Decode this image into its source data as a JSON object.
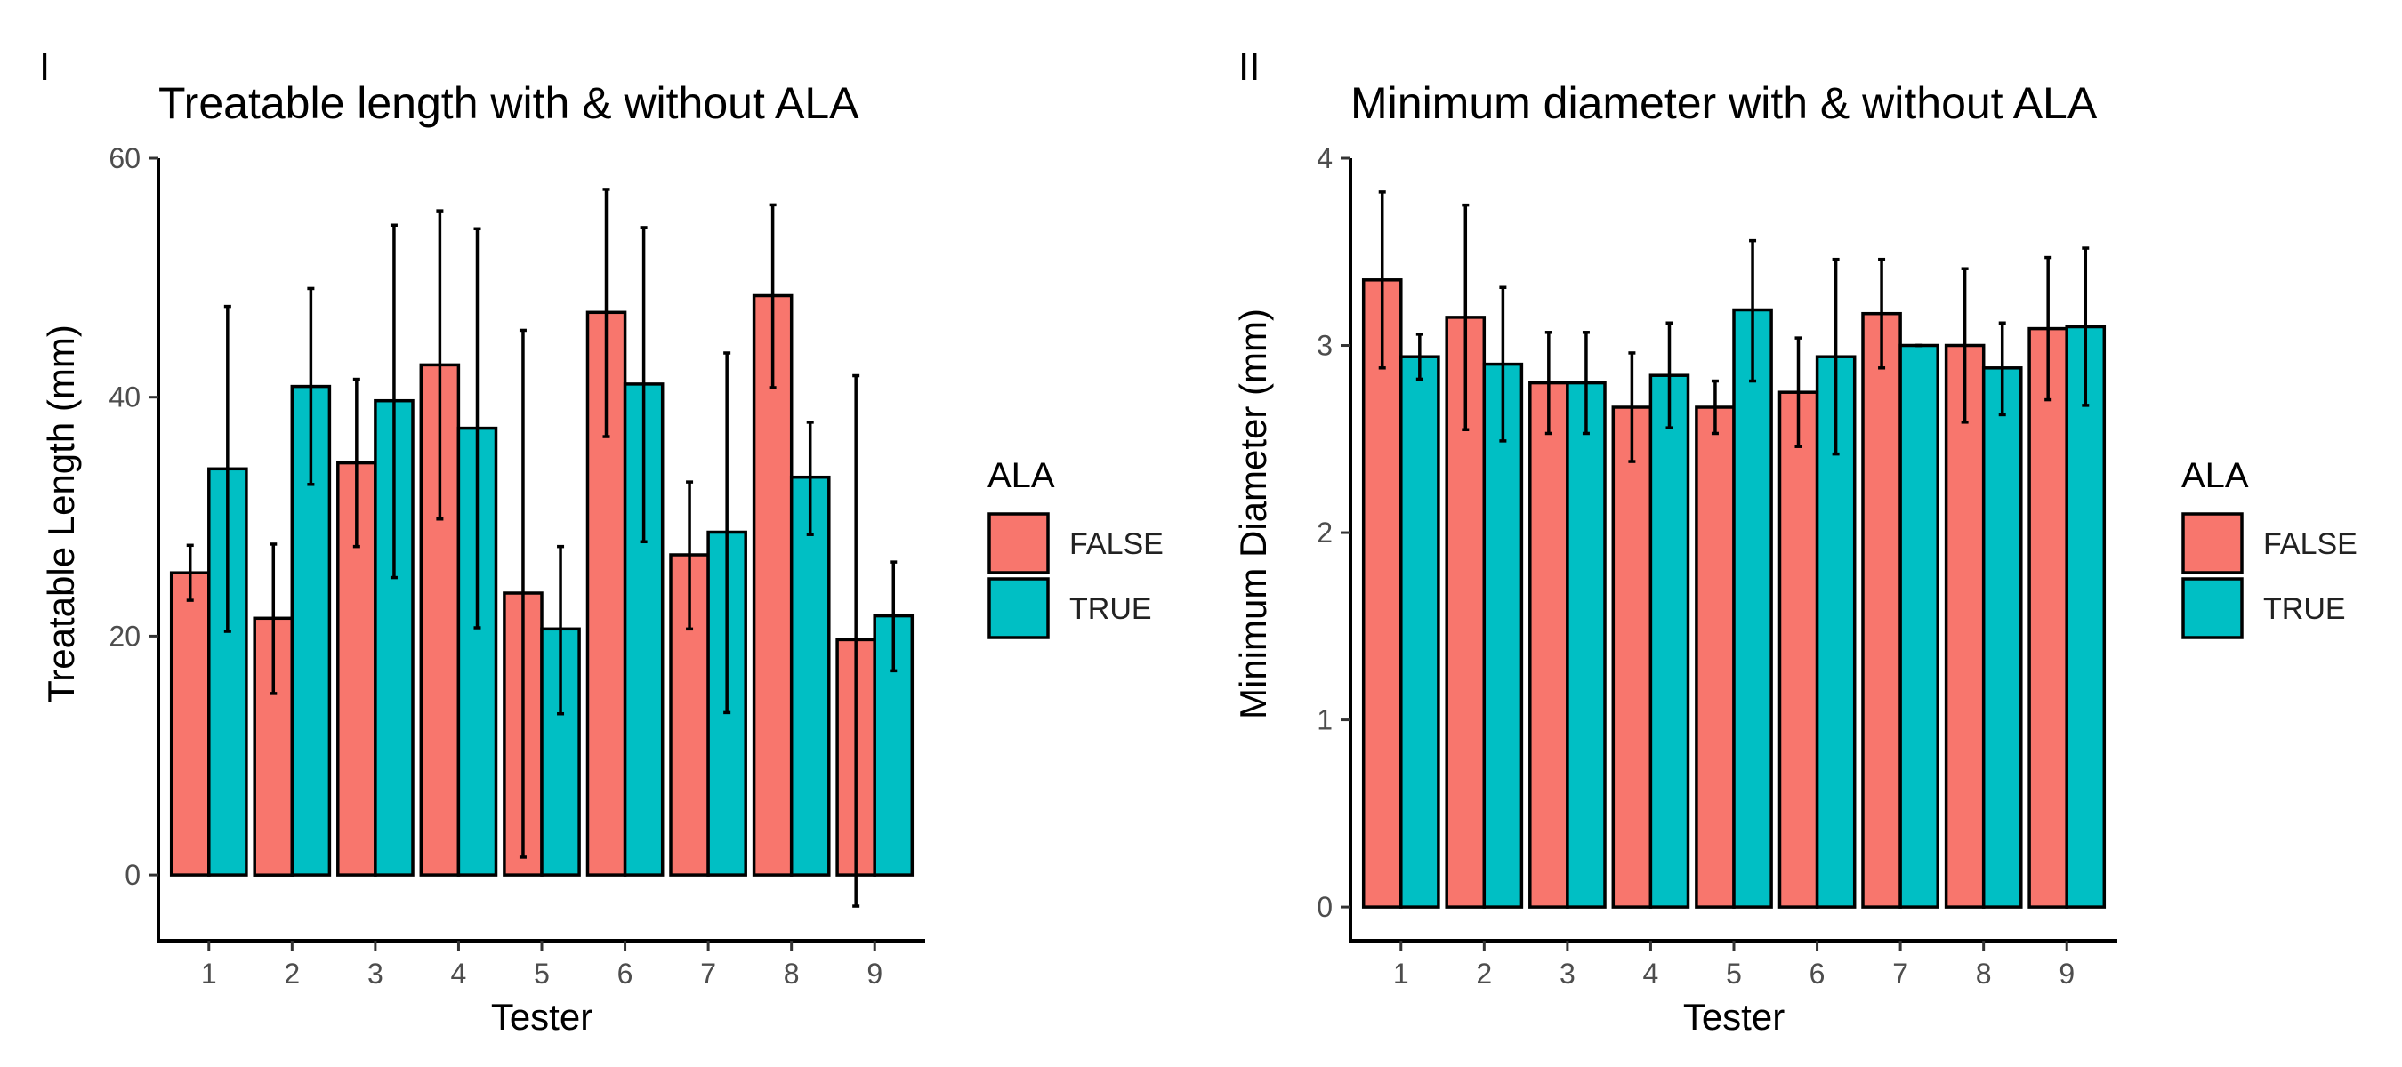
{
  "colors": {
    "FALSE": "#F8766D",
    "TRUE": "#00BFC4",
    "outline": "#000000"
  },
  "chart_data": [
    {
      "type": "bar",
      "panel_tag": "I",
      "title": "Treatable length with & without ALA",
      "xlabel": "Tester",
      "ylabel": "Treatable Length (mm)",
      "ylim": [
        -5.5,
        60
      ],
      "yticks": [
        "0",
        "20",
        "40",
        "60"
      ],
      "categories": [
        "1",
        "2",
        "3",
        "4",
        "5",
        "6",
        "7",
        "8",
        "9"
      ],
      "legend": {
        "title": "ALA",
        "position": "right",
        "entries": [
          "FALSE",
          "TRUE"
        ]
      },
      "grid": false,
      "series": [
        {
          "name": "FALSE",
          "values": [
            25.3,
            21.5,
            34.5,
            42.7,
            23.6,
            47.1,
            26.8,
            48.5,
            19.7
          ],
          "err_low": [
            23.0,
            15.2,
            27.5,
            29.8,
            1.5,
            36.7,
            20.6,
            40.8,
            -2.6
          ],
          "err_high": [
            27.6,
            27.7,
            41.5,
            55.6,
            45.6,
            57.4,
            32.9,
            56.1,
            41.8
          ]
        },
        {
          "name": "TRUE",
          "values": [
            34.0,
            40.9,
            39.7,
            37.4,
            20.6,
            41.1,
            28.7,
            33.3,
            21.7
          ],
          "err_low": [
            20.4,
            32.7,
            24.9,
            20.7,
            13.5,
            27.9,
            13.6,
            28.5,
            17.1
          ],
          "err_high": [
            47.6,
            49.1,
            54.4,
            54.1,
            27.5,
            54.2,
            43.7,
            37.9,
            26.2
          ]
        }
      ]
    },
    {
      "type": "bar",
      "panel_tag": "II",
      "title": "Minimum diameter with & without ALA",
      "xlabel": "Tester",
      "ylabel": "Minimum Diameter (mm)",
      "ylim": [
        -0.18,
        4
      ],
      "yticks": [
        "0",
        "1",
        "2",
        "3",
        "4"
      ],
      "categories": [
        "1",
        "2",
        "3",
        "4",
        "5",
        "6",
        "7",
        "8",
        "9"
      ],
      "legend": {
        "title": "ALA",
        "position": "right",
        "entries": [
          "FALSE",
          "TRUE"
        ]
      },
      "grid": false,
      "series": [
        {
          "name": "FALSE",
          "values": [
            3.35,
            3.15,
            2.8,
            2.67,
            2.67,
            2.75,
            3.17,
            3.0,
            3.09
          ],
          "err_low": [
            2.88,
            2.55,
            2.53,
            2.38,
            2.53,
            2.46,
            2.88,
            2.59,
            2.71
          ],
          "err_high": [
            3.82,
            3.75,
            3.07,
            2.96,
            2.81,
            3.04,
            3.46,
            3.41,
            3.47
          ]
        },
        {
          "name": "TRUE",
          "values": [
            2.94,
            2.9,
            2.8,
            2.84,
            3.19,
            2.94,
            3.0,
            2.88,
            3.1
          ],
          "err_low": [
            2.82,
            2.49,
            2.53,
            2.56,
            2.81,
            2.42,
            3.0,
            2.63,
            2.68
          ],
          "err_high": [
            3.06,
            3.31,
            3.07,
            3.12,
            3.56,
            3.46,
            3.0,
            3.12,
            3.52
          ]
        }
      ]
    }
  ]
}
